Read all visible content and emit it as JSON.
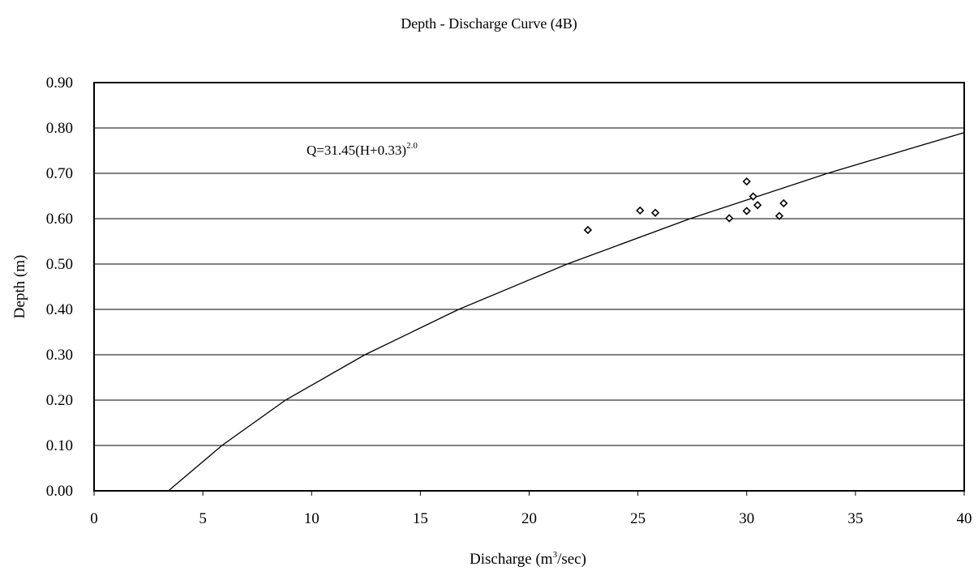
{
  "chart_data": {
    "type": "scatter",
    "title": "Depth - Discharge Curve (4B)",
    "xlabel": {
      "prefix": "Discharge (m",
      "sup": "3",
      "suffix": "/sec)"
    },
    "ylabel": "Depth (m)",
    "xlim": [
      0,
      40
    ],
    "ylim": [
      0,
      0.9
    ],
    "xticks": [
      "0",
      "5",
      "10",
      "15",
      "20",
      "25",
      "30",
      "35",
      "40"
    ],
    "yticks": [
      "0.00",
      "0.10",
      "0.20",
      "0.30",
      "0.40",
      "0.50",
      "0.60",
      "0.70",
      "0.80",
      "0.90"
    ],
    "grid": "horizontal",
    "annotation": {
      "base": "Q=31.45(H+0.33)",
      "sup": "2.0"
    },
    "curve": {
      "x": [
        3.42,
        5.88,
        8.8,
        12.45,
        16.76,
        21.75,
        27.4,
        33.72,
        40.71
      ],
      "y": [
        0.0,
        0.1,
        0.2,
        0.3,
        0.4,
        0.5,
        0.6,
        0.7,
        0.8
      ]
    },
    "points": {
      "x": [
        22.7,
        25.1,
        25.8,
        29.2,
        30.0,
        30.0,
        30.3,
        30.5,
        31.5,
        31.7
      ],
      "y": [
        0.575,
        0.618,
        0.613,
        0.601,
        0.617,
        0.682,
        0.649,
        0.63,
        0.606,
        0.634
      ]
    }
  }
}
